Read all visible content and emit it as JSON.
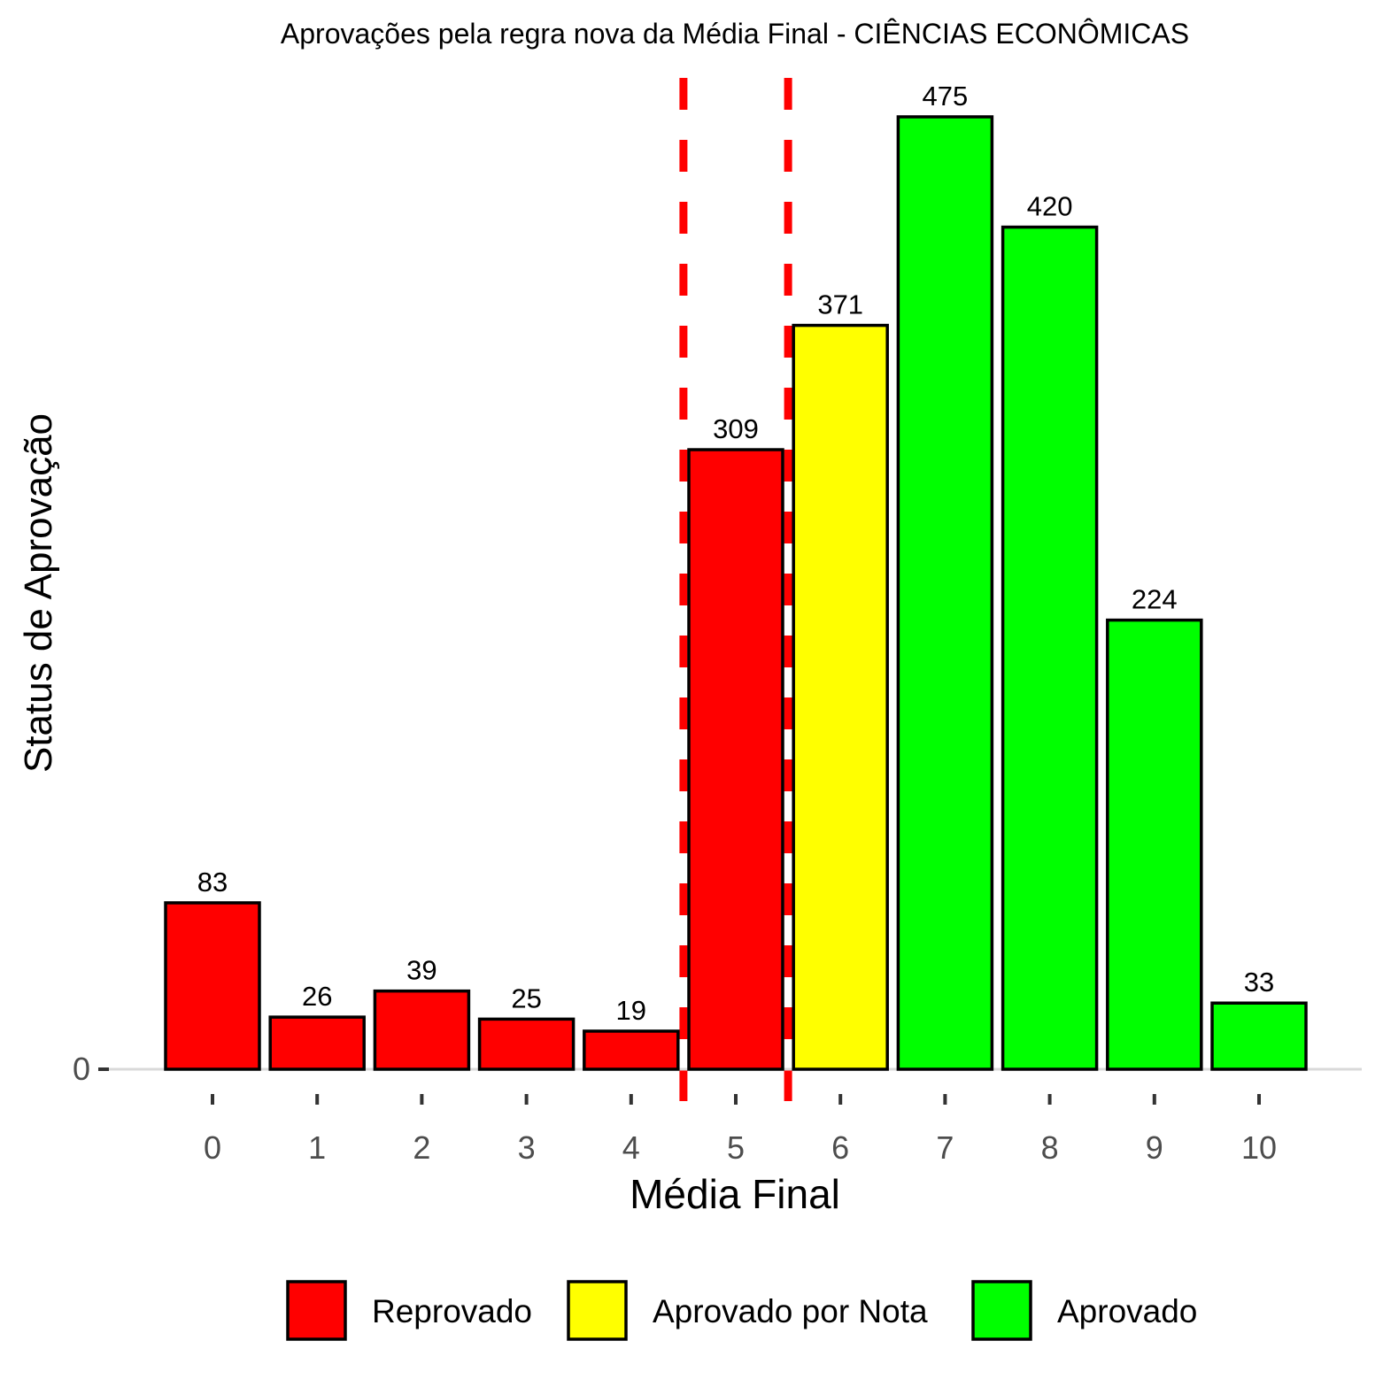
{
  "chart_data": {
    "type": "bar",
    "title": "Aprovações pela regra nova da Média Final - CIÊNCIAS ECONÔMICAS",
    "xlabel": "Média Final",
    "ylabel": "Status de Aprovação",
    "categories": [
      "0",
      "1",
      "2",
      "3",
      "4",
      "5",
      "6",
      "7",
      "8",
      "9",
      "10"
    ],
    "values": [
      83,
      26,
      39,
      25,
      19,
      309,
      371,
      475,
      420,
      224,
      33
    ],
    "status": [
      "Reprovado",
      "Reprovado",
      "Reprovado",
      "Reprovado",
      "Reprovado",
      "Reprovado",
      "Aprovado por Nota",
      "Aprovado",
      "Aprovado",
      "Aprovado",
      "Aprovado"
    ],
    "y_ticks": [
      "0"
    ],
    "ylim": [
      0,
      475
    ],
    "reference_lines": [
      {
        "x": 4.5,
        "style": "dashed",
        "color": "#ff0000"
      },
      {
        "x": 5.5,
        "style": "dashed",
        "color": "#ff0000"
      }
    ],
    "legend": {
      "position": "bottom",
      "entries": [
        {
          "label": "Reprovado",
          "color": "#ff0000"
        },
        {
          "label": "Aprovado por Nota",
          "color": "#ffff00"
        },
        {
          "label": "Aprovado",
          "color": "#00ff00"
        }
      ]
    },
    "grid": false
  }
}
